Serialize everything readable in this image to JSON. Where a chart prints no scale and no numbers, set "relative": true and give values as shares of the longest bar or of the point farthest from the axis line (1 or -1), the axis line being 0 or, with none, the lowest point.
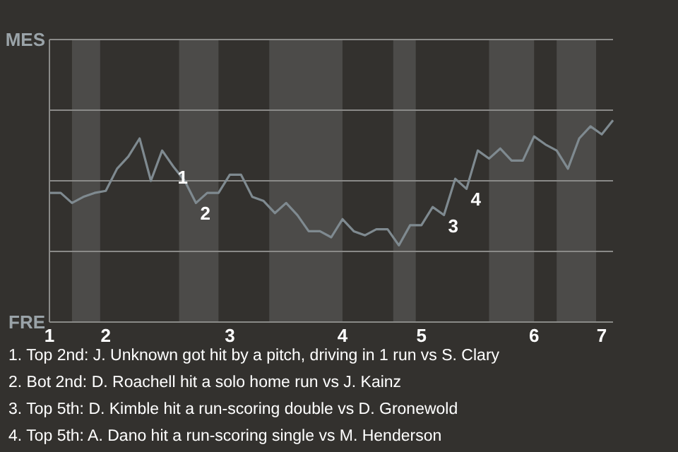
{
  "chart_data": {
    "type": "line",
    "relative": true,
    "categories": [
      "1",
      null,
      null,
      null,
      null,
      "2",
      null,
      null,
      null,
      null,
      null,
      null,
      null,
      null,
      null,
      null,
      "3",
      null,
      null,
      null,
      null,
      null,
      null,
      null,
      null,
      null,
      "4",
      null,
      null,
      null,
      null,
      null,
      null,
      "5",
      null,
      null,
      null,
      null,
      null,
      null,
      null,
      null,
      null,
      "6",
      null,
      null,
      null,
      null,
      null,
      "7",
      null
    ],
    "series": [
      {
        "color": "#7f8a90",
        "values": [
          0.64,
          0.64,
          0.59,
          0.62,
          0.64,
          0.65,
          0.76,
          0.82,
          0.91,
          0.7,
          0.85,
          0.77,
          0.7,
          0.59,
          0.64,
          0.64,
          0.73,
          0.73,
          0.62,
          0.6,
          0.54,
          0.59,
          0.53,
          0.45,
          0.45,
          0.42,
          0.51,
          0.45,
          0.43,
          0.46,
          0.46,
          0.38,
          0.48,
          0.48,
          0.57,
          0.53,
          0.71,
          0.66,
          0.85,
          0.81,
          0.86,
          0.8,
          0.8,
          0.92,
          0.88,
          0.85,
          0.76,
          0.91,
          0.97,
          0.93,
          1
        ]
      }
    ],
    "marker": "none",
    "line_style": "solid",
    "ref_lines": [
      {
        "axis": "y",
        "value": 0,
        "label": "FRE",
        "color": "#8a8a88"
      },
      {
        "axis": "y",
        "value": 0.35,
        "color": "#8a8a88"
      },
      {
        "axis": "y",
        "value": 0.7,
        "color": "#8a8a88"
      },
      {
        "axis": "y",
        "value": 1.05,
        "color": "#8a8a88"
      },
      {
        "axis": "y",
        "value": 1.4,
        "label": "MES",
        "color": "#8a8a88"
      }
    ],
    "annotations": [
      "1",
      "2",
      "3",
      "4",
      "1. Top 2nd: J. Unknown got hit by a pitch, driving in 1 run vs S. Clary",
      "2. Bot 2nd: D. Roachell hit a solo home run vs J. Kainz",
      "3. Top 5th: D. Kimble hit a run-scoring double vs D. Gronewold",
      "4. Top 5th: A. Dano hit a run-scoring single vs M. Henderson"
    ]
  }
}
